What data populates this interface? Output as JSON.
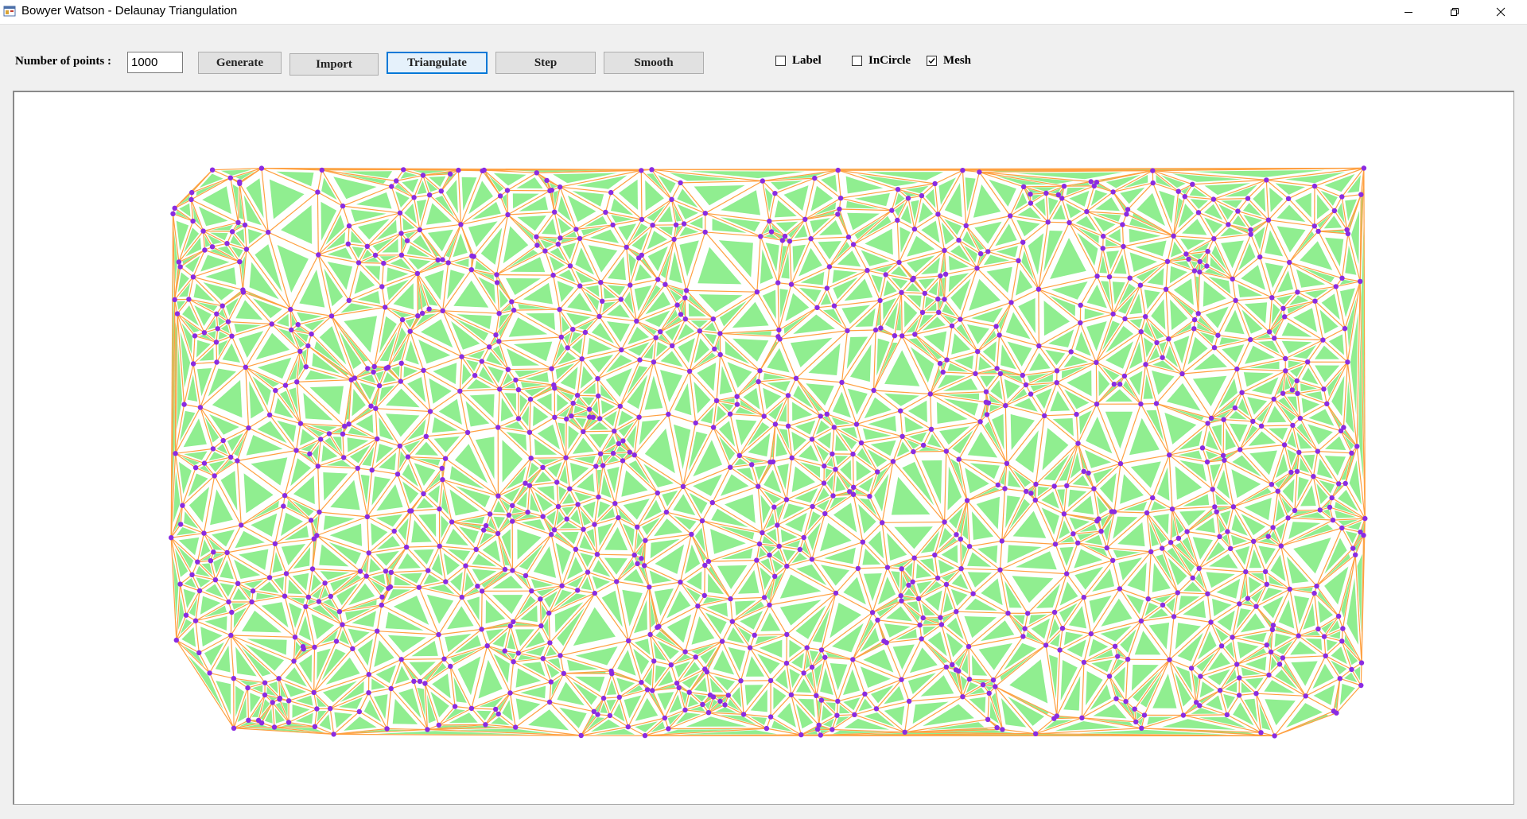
{
  "window": {
    "title": "Bowyer Watson - Delaunay Triangulation",
    "app_icon": "winforms-app-icon",
    "controls": [
      "minimize-icon",
      "restore-icon",
      "close-icon"
    ]
  },
  "toolbar": {
    "points_label": "Number of points :",
    "points_value": "1000",
    "buttons": {
      "generate": "Generate",
      "import": "Import",
      "triangulate": "Triangulate",
      "step": "Step",
      "smooth": "Smooth"
    },
    "checkboxes": {
      "label": {
        "text": "Label",
        "checked": false
      },
      "incircle": {
        "text": "InCircle",
        "checked": false
      },
      "mesh": {
        "text": "Mesh",
        "checked": true
      }
    }
  },
  "canvas": {
    "point_count": 1000,
    "colors": {
      "triangle_fill": "#90ee90",
      "edge": "#ffa040",
      "vertex": "#8a2be2",
      "background": "#ffffff"
    }
  }
}
